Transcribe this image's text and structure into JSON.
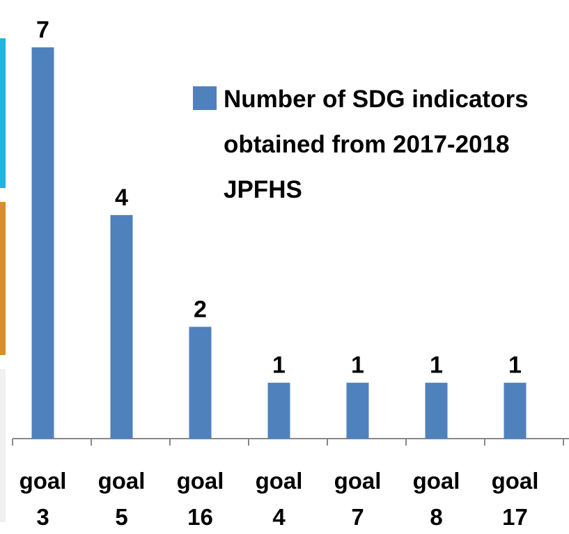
{
  "chart_data": {
    "type": "bar",
    "categories": [
      "goal 3",
      "goal 5",
      "goal 16",
      "goal 4",
      "goal 7",
      "goal 8",
      "goal 17"
    ],
    "series": [
      {
        "name": "Number of SDG indicators obtained from 2017-2018 JPFHS",
        "color": "#4f81bd",
        "values": [
          7,
          4,
          2,
          1,
          1,
          1,
          1
        ]
      }
    ],
    "legend": "upper right"
  }
}
